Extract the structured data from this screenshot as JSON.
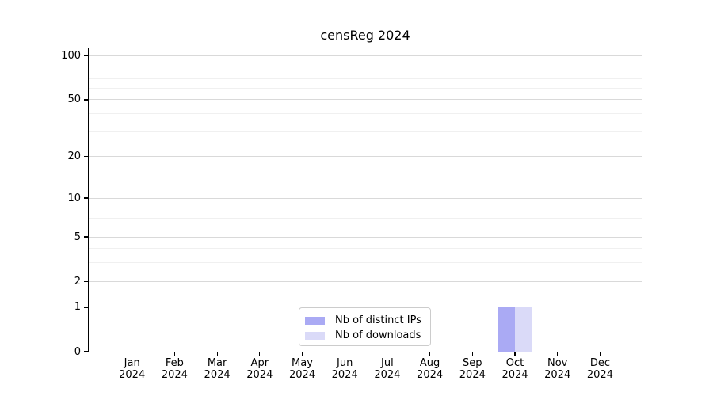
{
  "chart_data": {
    "type": "bar",
    "title": "censReg 2024",
    "categories": [
      "Jan",
      "Feb",
      "Mar",
      "Apr",
      "May",
      "Jun",
      "Jul",
      "Aug",
      "Sep",
      "Oct",
      "Nov",
      "Dec"
    ],
    "year_label": "2024",
    "series": [
      {
        "name": "Nb of distinct IPs",
        "color": "#aaaaf4",
        "values": [
          0,
          0,
          0,
          0,
          0,
          0,
          0,
          0,
          0,
          1,
          0,
          0
        ]
      },
      {
        "name": "Nb of downloads",
        "color": "#dadaf8",
        "values": [
          0,
          0,
          0,
          0,
          0,
          0,
          0,
          0,
          0,
          1,
          0,
          0
        ]
      }
    ],
    "y_axis": {
      "scale": "log1p",
      "major_ticks": [
        0,
        1,
        2,
        5,
        10,
        20,
        50,
        100
      ],
      "minor_ticks": [
        3,
        4,
        6,
        7,
        8,
        9,
        30,
        40,
        60,
        70,
        80,
        90
      ],
      "ylim": [
        0,
        113
      ]
    },
    "xlabel": "",
    "ylabel": "",
    "grid": {
      "enabled": true,
      "major_color": "#d9d9d9",
      "minor_color": "#f0f0f0"
    },
    "legend": {
      "position": "lower center",
      "entries": [
        "Nb of distinct IPs",
        "Nb of downloads"
      ]
    },
    "axis_color": "#000000",
    "background": "#ffffff"
  }
}
